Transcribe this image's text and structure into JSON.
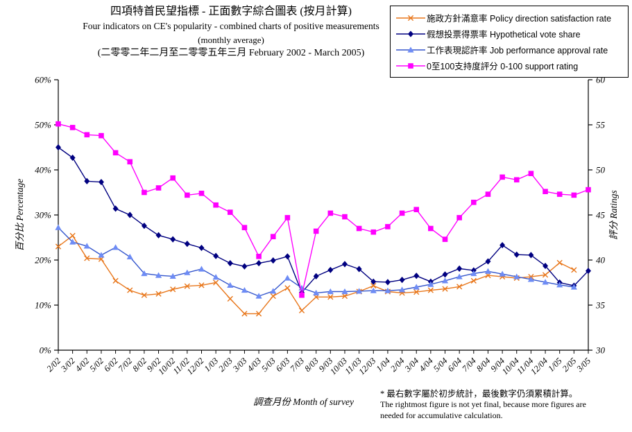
{
  "title": {
    "line1_zh": "四項特首民望指標 - 正面數字綜合圖表 (按月計算)",
    "line2_en": "Four indicators on CE's popularity - combined charts of positive measurements",
    "line3": "(monthly average)",
    "line4_range": "(二零零二年二月至二零零五年三月 February 2002 - March 2005)"
  },
  "legend": {
    "items": [
      {
        "label": "施政方針滿意率 Policy direction satisfaction rate",
        "marker": "x-marker",
        "color": "#E8761A"
      },
      {
        "label": "假想投票得票率 Hypothetical vote share",
        "marker": "diamond-marker",
        "color": "#000080"
      },
      {
        "label": "工作表現認許率 Job performance approval rate",
        "marker": "triangle-marker",
        "color": "#3355CC",
        "fill": "#6E8CF5"
      },
      {
        "label": "0至100支持度評分 0-100 support rating",
        "marker": "square-marker",
        "color": "#FF00FF"
      }
    ]
  },
  "axes": {
    "left": {
      "title": "百分比 Percentage",
      "ticks": [
        "0%",
        "10%",
        "20%",
        "30%",
        "40%",
        "50%",
        "60%"
      ]
    },
    "right": {
      "title": "評分 Ratings",
      "ticks": [
        "30",
        "35",
        "40",
        "45",
        "50",
        "55",
        "60"
      ]
    },
    "x": {
      "caption": "調查月份 Month of survey"
    }
  },
  "footnote": {
    "zh": "* 最右數字屬於初步統計，最後數字仍須累積計算。",
    "en1": "The rightmost figure is not yet final, because more figures are",
    "en2": "needed for accumulative calculation."
  },
  "chart_data": {
    "type": "line",
    "x": [
      "2/02",
      "3/02",
      "4/02",
      "5/02",
      "6/02",
      "7/02",
      "8/02",
      "9/02",
      "10/02",
      "11/02",
      "12/02",
      "1/03",
      "2/03",
      "3/03",
      "4/03",
      "5/03",
      "6/03",
      "7/03",
      "8/03",
      "9/03",
      "10/03",
      "11/03",
      "12/03",
      "1/04",
      "2/04",
      "3/04",
      "4/04",
      "5/04",
      "6/04",
      "7/04",
      "8/04",
      "9/04",
      "10/04",
      "11/04",
      "12/04",
      "1/05",
      "2/05",
      "3/05"
    ],
    "left_ylim": [
      0,
      60
    ],
    "right_ylim": [
      30,
      60
    ],
    "left_axis_unit": "percent",
    "right_axis_unit": "rating points",
    "grid": false,
    "legend_position": "top-right",
    "series": [
      {
        "name": "施政方針滿意率 Policy direction satisfaction rate",
        "axis": "left",
        "color": "#E8761A",
        "marker": "x",
        "values": [
          23.0,
          25.4,
          20.4,
          20.2,
          15.4,
          13.3,
          12.2,
          12.5,
          13.5,
          14.2,
          14.4,
          15.0,
          11.4,
          8.1,
          8.1,
          12.0,
          13.8,
          8.8,
          11.8,
          11.8,
          12.0,
          13.0,
          14.3,
          13.0,
          12.7,
          12.9,
          13.3,
          13.6,
          14.1,
          15.4,
          16.6,
          16.3,
          16.0,
          16.3,
          16.7,
          19.4,
          17.8,
          null
        ]
      },
      {
        "name": "假想投票得票率 Hypothetical vote share",
        "axis": "left",
        "color": "#000080",
        "marker": "diamond",
        "values": [
          45.0,
          42.7,
          37.5,
          37.3,
          31.4,
          30.0,
          27.6,
          25.5,
          24.6,
          23.6,
          22.7,
          20.9,
          19.3,
          18.6,
          19.3,
          19.9,
          20.8,
          12.8,
          16.4,
          17.8,
          19.1,
          18.0,
          15.2,
          15.1,
          15.6,
          16.5,
          15.2,
          16.8,
          18.1,
          17.7,
          19.7,
          23.3,
          21.2,
          21.1,
          18.7,
          15.0,
          14.3,
          17.6
        ]
      },
      {
        "name": "工作表現認許率 Job performance approval rate",
        "axis": "left",
        "color": "#3355CC",
        "marker_fill": "#6E8CF5",
        "marker": "triangle",
        "values": [
          27.2,
          24.0,
          23.1,
          21.1,
          22.8,
          20.7,
          17.0,
          16.6,
          16.4,
          17.2,
          18.0,
          16.2,
          14.4,
          13.3,
          12.0,
          13.1,
          16.0,
          13.8,
          12.7,
          13.0,
          13.0,
          13.1,
          13.2,
          13.2,
          13.4,
          14.0,
          14.6,
          15.4,
          16.3,
          17.0,
          17.5,
          16.9,
          16.3,
          15.7,
          15.1,
          14.5,
          14.0,
          null
        ]
      },
      {
        "name": "0至100支持度評分 0-100 support rating",
        "axis": "right",
        "color": "#FF00FF",
        "marker": "square",
        "values": [
          55.1,
          54.7,
          53.9,
          53.8,
          51.9,
          50.9,
          47.5,
          48.0,
          49.1,
          47.2,
          47.4,
          46.1,
          45.3,
          43.6,
          40.4,
          42.6,
          44.7,
          36.1,
          43.2,
          45.2,
          44.8,
          43.5,
          43.1,
          43.7,
          45.2,
          45.6,
          43.5,
          42.3,
          44.7,
          46.4,
          47.3,
          49.2,
          48.9,
          49.6,
          47.6,
          47.3,
          47.2,
          47.8
        ]
      }
    ]
  }
}
